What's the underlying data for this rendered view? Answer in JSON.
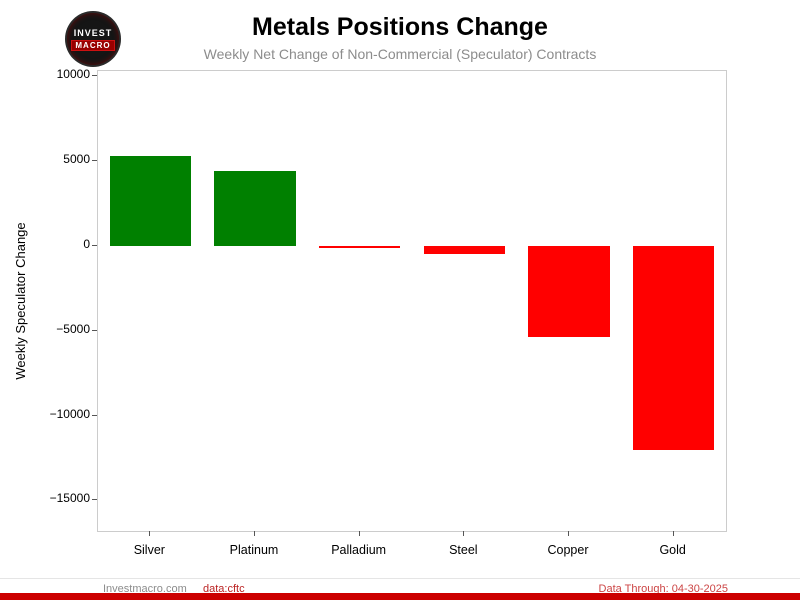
{
  "header": {
    "title": "Metals Positions Change",
    "subtitle": "Weekly Net Change of Non-Commercial (Speculator) Contracts"
  },
  "logo": {
    "line1": "INVEST",
    "line2": "MACRO"
  },
  "chart_data": {
    "type": "bar",
    "categories": [
      "Silver",
      "Platinum",
      "Palladium",
      "Steel",
      "Copper",
      "Gold"
    ],
    "values": [
      5300,
      4400,
      -100,
      -500,
      -5400,
      -12000
    ],
    "title": "Metals Positions Change",
    "subtitle": "Weekly Net Change of Non-Commercial (Speculator) Contracts",
    "xlabel": "",
    "ylabel": "Weekly Speculator Change",
    "ylim": [
      -16800,
      10300
    ],
    "yticks": [
      {
        "value": 10000,
        "label": "10000"
      },
      {
        "value": 5000,
        "label": "5000"
      },
      {
        "value": 0,
        "label": "0"
      },
      {
        "value": -5000,
        "label": "−5000"
      },
      {
        "value": -10000,
        "label": "−10000"
      },
      {
        "value": -15000,
        "label": "−15000"
      }
    ],
    "grid": false,
    "legend": false,
    "positive_color": "#008000",
    "negative_color": "#ff0000"
  },
  "footer": {
    "site": "Investmacro.com",
    "source": "data:cftc",
    "data_through": "Data Through: 04-30-2025"
  },
  "colors": {
    "positive": "#008000",
    "negative": "#ff0000",
    "footer_accent": "#cc0000",
    "subtitle_gray": "#8c8c8c"
  }
}
